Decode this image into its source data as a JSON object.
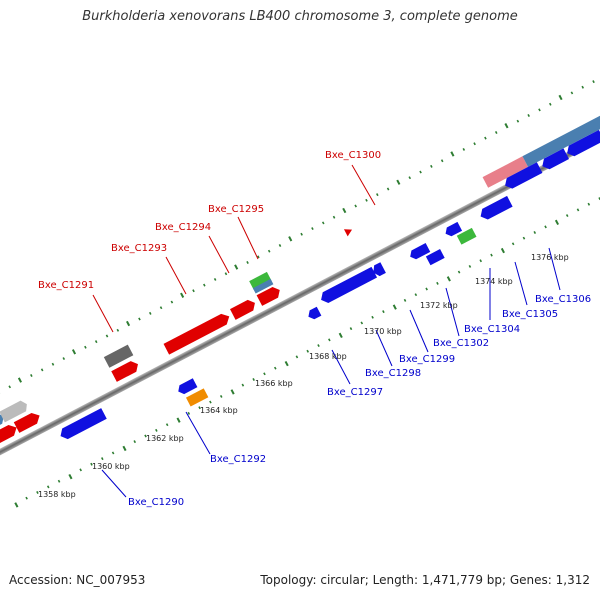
{
  "title": "Burkholderia xenovorans LB400 chromosome 3, complete genome",
  "footer": {
    "accession": "Accession: NC_007953",
    "summary": "Topology: circular; Length: 1,471,779 bp; Genes: 1,312"
  },
  "colors": {
    "backbone": "#888888",
    "tick": "#2e7d32",
    "forward_label": "#cc0000",
    "reverse_label": "#0000cc"
  },
  "scale_labels": [
    "1358 kbp",
    "1360 kbp",
    "1362 kbp",
    "1364 kbp",
    "1366 kbp",
    "1368 kbp",
    "1370 kbp",
    "1372 kbp",
    "1374 kbp",
    "1376 kbp"
  ],
  "gene_labels": {
    "forward": [
      "Bxe_C1291",
      "Bxe_C1293",
      "Bxe_C1294",
      "Bxe_C1295",
      "Bxe_C1300"
    ],
    "reverse": [
      "Bxe_C1290",
      "Bxe_C1292",
      "Bxe_C1297",
      "Bxe_C1298",
      "Bxe_C1299",
      "Bxe_C1302",
      "Bxe_C1304",
      "Bxe_C1305",
      "Bxe_C1306"
    ]
  }
}
